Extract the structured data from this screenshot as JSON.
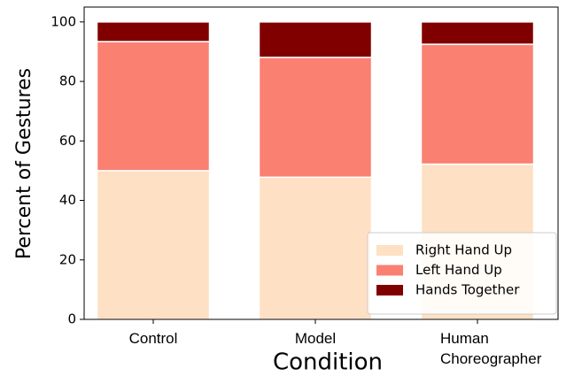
{
  "chart_data": {
    "type": "stacked_bar",
    "xlabel": "Condition",
    "ylabel": "Percent of Gestures",
    "categories": [
      "Control",
      "Model",
      "Human Choreographer"
    ],
    "series": [
      {
        "name": "Right Hand Up",
        "color": "#fee0c4",
        "values": [
          50,
          47.8,
          52.2
        ]
      },
      {
        "name": "Left Hand Up",
        "color": "#fa8072",
        "values": [
          43.4,
          40.3,
          40.3
        ]
      },
      {
        "name": "Hands Together",
        "color": "#800000",
        "values": [
          6.6,
          11.9,
          7.5
        ]
      }
    ],
    "ylim": [
      0,
      105
    ],
    "yticks": [
      0,
      20,
      40,
      60,
      80,
      100
    ],
    "legend": "lower right"
  }
}
